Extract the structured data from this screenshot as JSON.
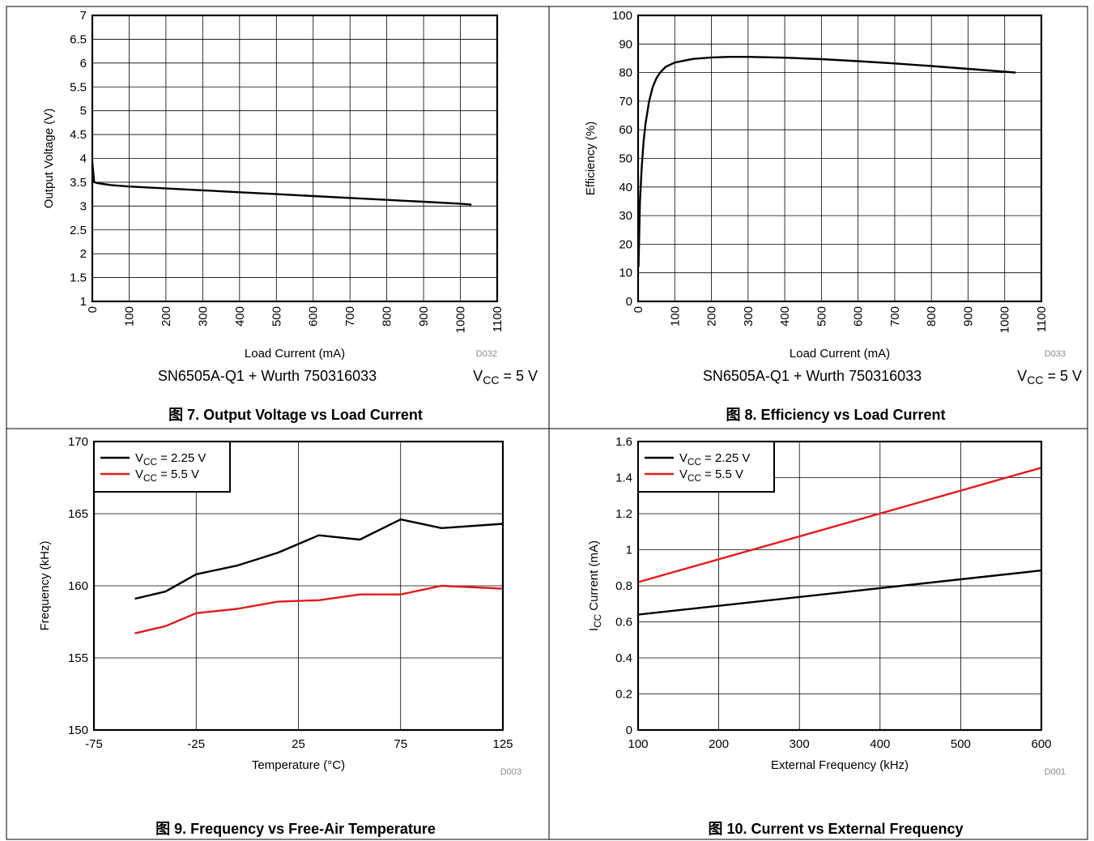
{
  "chart_data": [
    {
      "type": "line",
      "ylabel": "Output Voltage (V)",
      "xlabel": "Load Current (mA)",
      "code": "D032",
      "cond_left": "SN6505A-Q1 + Wurth 750316033",
      "cond_right": {
        "pre": "V",
        "sub": "CC",
        "post": " = 5 V"
      },
      "caption": "图 7. Output Voltage vs Load Current",
      "xlim": [
        0,
        1100
      ],
      "ylim": [
        1,
        7
      ],
      "xticks": [
        "0",
        "100",
        "200",
        "300",
        "400",
        "500",
        "600",
        "700",
        "800",
        "900",
        "1000",
        "1100"
      ],
      "yticks": [
        "1",
        "1.5",
        "2",
        "2.5",
        "3",
        "3.5",
        "4",
        "4.5",
        "5",
        "5.5",
        "6",
        "6.5",
        "7"
      ],
      "series": [
        {
          "color": "#000000",
          "x": [
            0,
            5,
            15,
            50,
            100,
            200,
            300,
            400,
            500,
            600,
            700,
            800,
            900,
            1000,
            1030
          ],
          "y": [
            3.92,
            3.5,
            3.48,
            3.44,
            3.41,
            3.37,
            3.33,
            3.29,
            3.25,
            3.21,
            3.17,
            3.13,
            3.09,
            3.05,
            3.03
          ]
        }
      ]
    },
    {
      "type": "line",
      "ylabel": "Efficiency (%)",
      "xlabel": "Load Current (mA)",
      "code": "D033",
      "cond_left": "SN6505A-Q1 + Wurth 750316033",
      "cond_right": {
        "pre": "V",
        "sub": "CC",
        "post": " = 5 V"
      },
      "caption": "图 8. Efficiency vs Load Current",
      "xlim": [
        0,
        1100
      ],
      "ylim": [
        0,
        100
      ],
      "xticks": [
        "0",
        "100",
        "200",
        "300",
        "400",
        "500",
        "600",
        "700",
        "800",
        "900",
        "1000",
        "1100"
      ],
      "yticks": [
        "0",
        "10",
        "20",
        "30",
        "40",
        "50",
        "60",
        "70",
        "80",
        "90",
        "100"
      ],
      "series": [
        {
          "color": "#000000",
          "x": [
            1,
            5,
            10,
            15,
            20,
            30,
            40,
            50,
            60,
            75,
            100,
            150,
            200,
            250,
            300,
            400,
            500,
            600,
            700,
            800,
            900,
            1000,
            1030
          ],
          "y": [
            12,
            35,
            47,
            56,
            62,
            70,
            75,
            78,
            80,
            82,
            83.5,
            84.8,
            85.3,
            85.5,
            85.5,
            85.2,
            84.7,
            84,
            83.2,
            82.3,
            81.3,
            80.3,
            80
          ]
        }
      ]
    },
    {
      "type": "line",
      "ylabel": "Frequency (kHz)",
      "xlabel": "Temperature (°C)",
      "code": "D003",
      "caption": "图 9. Frequency vs Free-Air Temperature",
      "xlim": [
        -75,
        125
      ],
      "ylim": [
        150,
        170
      ],
      "xticks": [
        "-75",
        "-25",
        "25",
        "75",
        "125"
      ],
      "yticks": [
        "150",
        "155",
        "160",
        "165",
        "170"
      ],
      "legend": "top-left",
      "series": [
        {
          "legend_pre": "V",
          "legend_sub": "CC",
          "legend_post": " = 2.25 V",
          "color": "#000000",
          "x": [
            -55,
            -40,
            -25,
            -5,
            15,
            35,
            55,
            75,
            95,
            125
          ],
          "y": [
            159.1,
            159.6,
            160.8,
            161.4,
            162.3,
            163.5,
            163.2,
            164.6,
            164,
            164.3
          ]
        },
        {
          "legend_pre": "V",
          "legend_sub": "CC",
          "legend_post": " = 5.5 V",
          "color": "#e31a1c",
          "x": [
            -55,
            -40,
            -25,
            -5,
            15,
            35,
            55,
            75,
            95,
            125
          ],
          "y": [
            156.7,
            157.2,
            158.1,
            158.4,
            158.9,
            159,
            159.4,
            159.4,
            160,
            159.8
          ]
        }
      ]
    },
    {
      "type": "line",
      "ylabel": {
        "pre": "I",
        "sub": "CC",
        "post": " Current (mA)"
      },
      "xlabel": "External Frequency (kHz)",
      "code": "D001",
      "caption": "图 10. Current vs External Frequency",
      "xlim": [
        100,
        600
      ],
      "ylim": [
        0,
        1.6
      ],
      "xticks": [
        "100",
        "200",
        "300",
        "400",
        "500",
        "600"
      ],
      "yticks": [
        "0",
        "0.2",
        "0.4",
        "0.6",
        "0.8",
        "1",
        "1.2",
        "1.4",
        "1.6"
      ],
      "legend": "top-left",
      "series": [
        {
          "legend_pre": "V",
          "legend_sub": "CC",
          "legend_post": " = 2.25 V",
          "color": "#000000",
          "x": [
            100,
            600
          ],
          "y": [
            0.64,
            0.885
          ]
        },
        {
          "legend_pre": "V",
          "legend_sub": "CC",
          "legend_post": " = 5.5 V",
          "color": "#e31a1c",
          "x": [
            100,
            600
          ],
          "y": [
            0.82,
            1.455
          ]
        }
      ]
    }
  ]
}
